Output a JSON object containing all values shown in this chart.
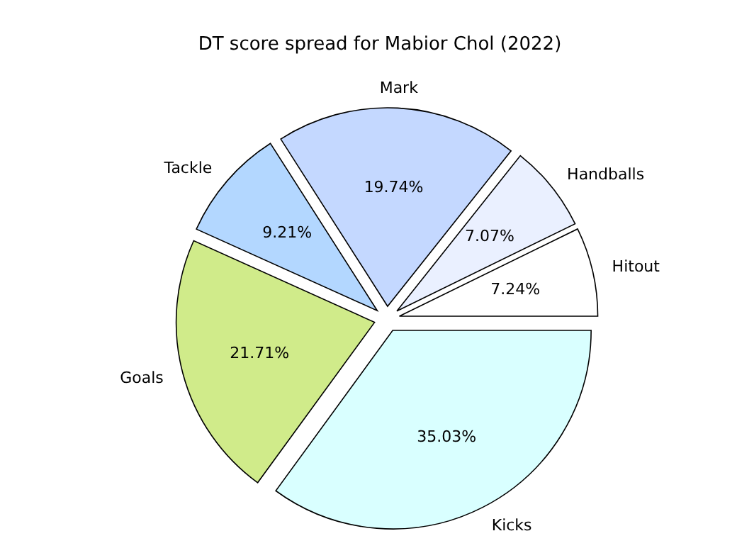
{
  "chart_data": {
    "type": "pie",
    "title": "DT score spread for Mabior Chol (2022)",
    "categories": [
      "Hitout",
      "Handballs",
      "Mark",
      "Tackle",
      "Goals",
      "Kicks"
    ],
    "values": [
      7.24,
      7.07,
      19.74,
      9.21,
      21.71,
      35.03
    ],
    "value_labels": [
      "7.24%",
      "7.07%",
      "19.74%",
      "9.21%",
      "21.71%",
      "35.03%"
    ],
    "colors": [
      "#ffffff",
      "#eaf0ff",
      "#c4d8ff",
      "#b3d7ff",
      "#d0eb8a",
      "#d9ffff"
    ],
    "legend": false
  }
}
